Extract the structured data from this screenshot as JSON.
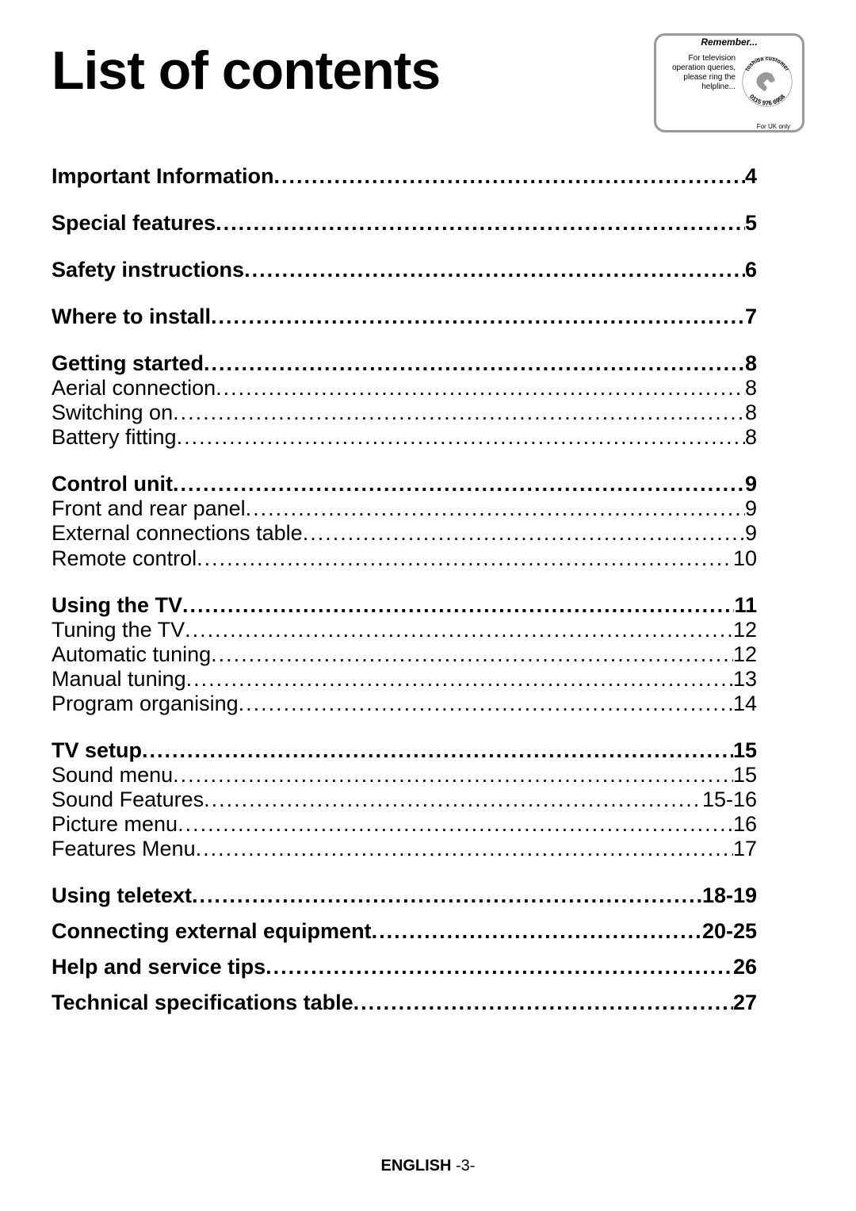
{
  "title": "List of contents",
  "badge": {
    "remember": "Remember...",
    "text": "For television operation queries, please ring the helpline...",
    "circle_top": "toshiba customer",
    "circle_bottom": "0115 976 6958",
    "phone_svg_color": "#888888",
    "uk": "For UK only"
  },
  "sections": [
    {
      "spacing": "normal",
      "entries": [
        {
          "label": "Important Information",
          "page": "4",
          "bold": true
        }
      ]
    },
    {
      "spacing": "normal",
      "entries": [
        {
          "label": "Special features ",
          "page": "5",
          "bold": true
        }
      ]
    },
    {
      "spacing": "normal",
      "entries": [
        {
          "label": "Safety instructions ",
          "page": "6",
          "bold": true
        }
      ]
    },
    {
      "spacing": "normal",
      "entries": [
        {
          "label": "Where to install ",
          "page": "7",
          "bold": true
        }
      ]
    },
    {
      "spacing": "normal",
      "entries": [
        {
          "label": "Getting started ",
          "page": "8",
          "bold": true
        },
        {
          "label": "Aerial connection ",
          "page": "8",
          "bold": false
        },
        {
          "label": "Switching on",
          "page": "8",
          "bold": false
        },
        {
          "label": "Battery fitting ",
          "page": "8",
          "bold": false
        }
      ]
    },
    {
      "spacing": "normal",
      "entries": [
        {
          "label": "Control unit",
          "page": "9",
          "bold": true
        },
        {
          "label": "Front and rear panel",
          "page": "9",
          "bold": false
        },
        {
          "label": "External connections table ",
          "page": "9",
          "bold": false
        },
        {
          "label": "Remote control ",
          "page": "10",
          "bold": false
        }
      ]
    },
    {
      "spacing": "normal",
      "entries": [
        {
          "label": "Using the TV ",
          "page": "11",
          "bold": true
        },
        {
          "label": "Tuning the TV",
          "page": "12",
          "bold": false
        },
        {
          "label": "Automatic tuning ",
          "page": "12",
          "bold": false
        },
        {
          "label": "Manual tuning ",
          "page": "13",
          "bold": false
        },
        {
          "label": "Program organising",
          "page": "14",
          "bold": false
        }
      ]
    },
    {
      "spacing": "normal",
      "entries": [
        {
          "label": "TV setup ",
          "page": "15",
          "bold": true
        },
        {
          "label": "Sound menu ",
          "page": "15",
          "bold": false
        },
        {
          "label": "Sound Features",
          "page": "15-16",
          "bold": false
        },
        {
          "label": "Picture menu",
          "page": "16",
          "bold": false
        },
        {
          "label": "Features Menu ",
          "page": "17",
          "bold": false
        }
      ]
    },
    {
      "spacing": "tight",
      "entries": [
        {
          "label": "Using teletext ",
          "page": "18-19",
          "bold": true
        }
      ]
    },
    {
      "spacing": "tight",
      "entries": [
        {
          "label": "Connecting external equipment ",
          "page": "20-25",
          "bold": true
        }
      ]
    },
    {
      "spacing": "tight",
      "entries": [
        {
          "label": "Help and service tips ",
          "page": "26",
          "bold": true
        }
      ]
    },
    {
      "spacing": "tight",
      "entries": [
        {
          "label": "Technical specifications table",
          "page": "27",
          "bold": true
        }
      ]
    }
  ],
  "footer": {
    "lang": "ENGLISH",
    "page": " -3-"
  }
}
